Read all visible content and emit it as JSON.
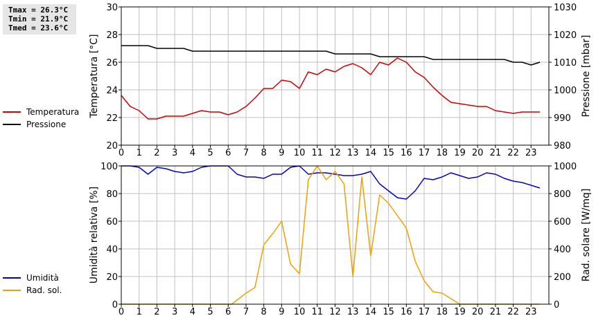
{
  "stats": {
    "tmax": "Tmax = 26.3°C",
    "tmin": "Tmin = 21.9°C",
    "tmed": "Tmed = 23.6°C"
  },
  "legend_top": [
    {
      "label": "Temperatura",
      "color": "#cc0000"
    },
    {
      "label": "Pressione",
      "color": "#000000"
    }
  ],
  "legend_bottom": [
    {
      "label": "Umidità",
      "color": "#0000cc"
    },
    {
      "label": "Rad. sol.",
      "color": "#f0a000"
    }
  ],
  "colors": {
    "grid": "#c0c0c0",
    "axis": "#000000"
  },
  "chart_data": [
    {
      "type": "line",
      "xlim": [
        0,
        24
      ],
      "x_ticks": [
        0,
        1,
        2,
        3,
        4,
        5,
        6,
        7,
        8,
        9,
        10,
        11,
        12,
        13,
        14,
        15,
        16,
        17,
        18,
        19,
        20,
        21,
        22,
        23
      ],
      "ylabel_left": "Temperatura [°C]",
      "ylim_left": [
        20,
        30
      ],
      "y_ticks_left": [
        20,
        22,
        24,
        26,
        28,
        30
      ],
      "ylabel_right": "Pressione [mbar]",
      "ylim_right": [
        980,
        1030
      ],
      "y_ticks_right": [
        980,
        990,
        1000,
        1010,
        1020,
        1030
      ],
      "grid": true,
      "series": [
        {
          "name": "Temperatura",
          "axis": "left",
          "color": "#cc0000",
          "x": [
            0,
            0.5,
            1,
            1.5,
            2,
            2.5,
            3,
            3.5,
            4,
            4.5,
            5,
            5.5,
            6,
            6.5,
            7,
            7.5,
            8,
            8.5,
            9,
            9.5,
            10,
            10.5,
            11,
            11.5,
            12,
            12.5,
            13,
            13.5,
            14,
            14.5,
            15,
            15.5,
            16,
            16.5,
            17,
            17.5,
            18,
            18.5,
            19,
            19.5,
            20,
            20.5,
            21,
            21.5,
            22,
            22.5,
            23,
            23.5
          ],
          "y": [
            23.6,
            22.8,
            22.5,
            21.9,
            21.9,
            22.1,
            22.1,
            22.1,
            22.3,
            22.5,
            22.4,
            22.4,
            22.2,
            22.4,
            22.8,
            23.4,
            24.1,
            24.1,
            24.7,
            24.6,
            24.1,
            25.3,
            25.1,
            25.5,
            25.3,
            25.7,
            25.9,
            25.6,
            25.1,
            26.0,
            25.8,
            26.3,
            26.0,
            25.3,
            24.9,
            24.2,
            23.6,
            23.1,
            23.0,
            22.9,
            22.8,
            22.8,
            22.5,
            22.4,
            22.3,
            22.4,
            22.4,
            22.4
          ]
        },
        {
          "name": "Pressione",
          "axis": "right",
          "color": "#000000",
          "x": [
            0,
            0.5,
            1,
            1.5,
            2,
            2.5,
            3,
            3.5,
            4,
            4.5,
            5,
            5.5,
            6,
            6.5,
            7,
            7.5,
            8,
            8.5,
            9,
            9.5,
            10,
            10.5,
            11,
            11.5,
            12,
            12.5,
            13,
            13.5,
            14,
            14.5,
            15,
            15.5,
            16,
            16.5,
            17,
            17.5,
            18,
            18.5,
            19,
            19.5,
            20,
            20.5,
            21,
            21.5,
            22,
            22.5,
            23,
            23.5
          ],
          "y": [
            1016,
            1016,
            1016,
            1016,
            1015,
            1015,
            1015,
            1015,
            1014,
            1014,
            1014,
            1014,
            1014,
            1014,
            1014,
            1014,
            1014,
            1014,
            1014,
            1014,
            1014,
            1014,
            1014,
            1014,
            1013,
            1013,
            1013,
            1013,
            1013,
            1012,
            1012,
            1012,
            1012,
            1012,
            1012,
            1011,
            1011,
            1011,
            1011,
            1011,
            1011,
            1011,
            1011,
            1011,
            1010,
            1010,
            1009,
            1010
          ]
        }
      ]
    },
    {
      "type": "line",
      "xlim": [
        0,
        24
      ],
      "x_ticks": [
        0,
        1,
        2,
        3,
        4,
        5,
        6,
        7,
        8,
        9,
        10,
        11,
        12,
        13,
        14,
        15,
        16,
        17,
        18,
        19,
        20,
        21,
        22,
        23
      ],
      "ylabel_left": "Umidità relativa [%]",
      "ylim_left": [
        0,
        100
      ],
      "y_ticks_left": [
        0,
        20,
        40,
        60,
        80,
        100
      ],
      "ylabel_right": "Rad. solare [W/mq]",
      "ylim_right": [
        0,
        1000
      ],
      "y_ticks_right": [
        0,
        200,
        400,
        600,
        800,
        1000
      ],
      "grid": true,
      "series": [
        {
          "name": "Umidità",
          "axis": "left",
          "color": "#0000cc",
          "x": [
            0,
            0.5,
            1,
            1.5,
            2,
            2.5,
            3,
            3.5,
            4,
            4.5,
            5,
            5.5,
            6,
            6.5,
            7,
            7.5,
            8,
            8.5,
            9,
            9.5,
            10,
            10.5,
            11,
            11.5,
            12,
            12.5,
            13,
            13.5,
            14,
            14.5,
            15,
            15.5,
            16,
            16.5,
            17,
            17.5,
            18,
            18.5,
            19,
            19.5,
            20,
            20.5,
            21,
            21.5,
            22,
            22.5,
            23,
            23.5
          ],
          "y": [
            100,
            100,
            99,
            94,
            99,
            98,
            96,
            95,
            96,
            99,
            100,
            100,
            100,
            94,
            92,
            92,
            91,
            94,
            94,
            99,
            100,
            94,
            95,
            95,
            94,
            93,
            93,
            94,
            96,
            87,
            82,
            77,
            76,
            82,
            91,
            90,
            92,
            95,
            93,
            91,
            92,
            95,
            94,
            91,
            89,
            88,
            86,
            84
          ]
        },
        {
          "name": "Rad. sol.",
          "axis": "right",
          "color": "#f0a000",
          "x": [
            0,
            6.2,
            6.5,
            7,
            7.5,
            8,
            8.5,
            9,
            9.5,
            10,
            10.5,
            11,
            11.5,
            12,
            12.5,
            13,
            13.5,
            14,
            14.5,
            15,
            15.5,
            16,
            16.5,
            17,
            17.5,
            18,
            18.5,
            19,
            19.5,
            23.5
          ],
          "y": [
            0,
            0,
            30,
            80,
            120,
            430,
            510,
            600,
            290,
            220,
            900,
            1000,
            900,
            960,
            870,
            200,
            920,
            350,
            790,
            730,
            640,
            550,
            310,
            170,
            90,
            80,
            40,
            0,
            0,
            0
          ]
        }
      ]
    }
  ]
}
